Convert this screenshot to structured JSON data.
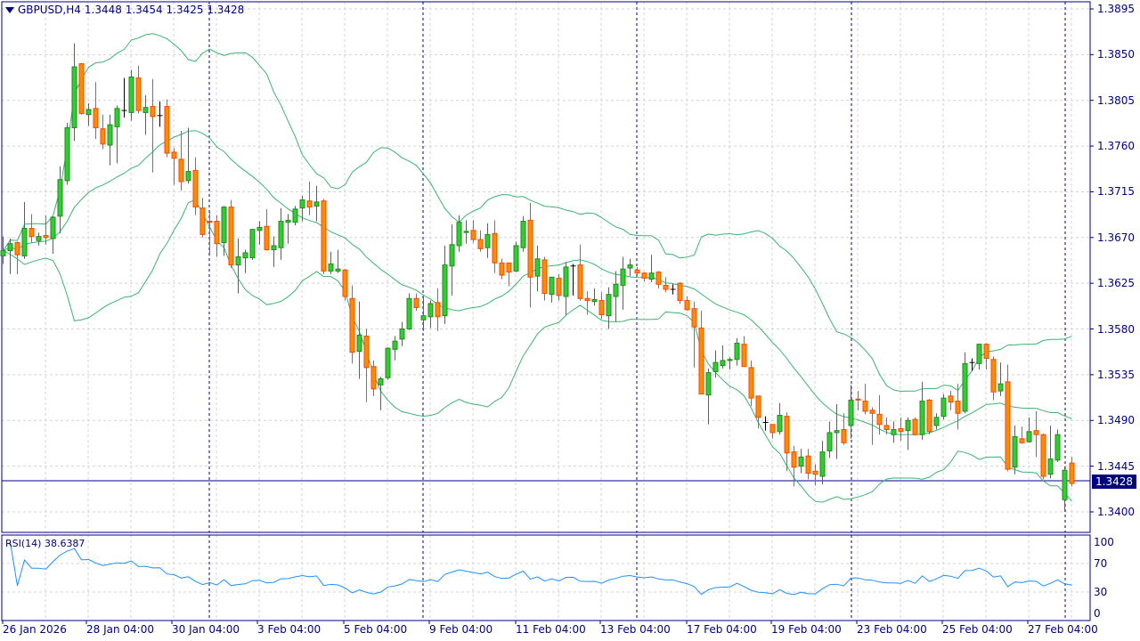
{
  "header": {
    "symbol": "GBPUSD,H4",
    "ohlc": "1.3448 1.3454 1.3425 1.3428",
    "menu_icon": "triangle-down-icon"
  },
  "current_price": "1.3428",
  "rsi_label": "RSI(14) 38.6387",
  "colors": {
    "bull": "#32CD32",
    "bull_border": "#1E8C1E",
    "bear": "#FF8C00",
    "bear_border": "#FF4500",
    "doji": "#000000",
    "bands": "#3CB371",
    "rsi": "#1E90FF",
    "axis": "#000080",
    "grid": "#D3D3D3"
  },
  "chart_data": [
    {
      "type": "candlestick",
      "title": "GBPUSD,H4",
      "indicator": "Bollinger Bands",
      "ylim": [
        1.338,
        1.3905
      ],
      "grid": true,
      "y_ticks": [
        "1.3895",
        "1.3850",
        "1.3805",
        "1.3760",
        "1.3715",
        "1.3670",
        "1.3625",
        "1.3580",
        "1.3535",
        "1.3490",
        "1.3445",
        "1.3400"
      ],
      "x_ticks": [
        "26 Jan 2026",
        "28 Jan 04:00",
        "30 Jan 04:00",
        "3 Feb 04:00",
        "5 Feb 04:00",
        "9 Feb 04:00",
        "11 Feb 04:00",
        "13 Feb 04:00",
        "17 Feb 04:00",
        "19 Feb 04:00",
        "23 Feb 04:00",
        "25 Feb 04:00",
        "27 Feb 04:00"
      ],
      "ohlc": [
        [
          1.3652,
          1.3671,
          1.3644,
          1.3657
        ],
        [
          1.3657,
          1.3669,
          1.3634,
          1.3664
        ],
        [
          1.3665,
          1.3666,
          1.3634,
          1.3653
        ],
        [
          1.3652,
          1.3705,
          1.3649,
          1.3679
        ],
        [
          1.3679,
          1.3693,
          1.3665,
          1.3671
        ],
        [
          1.3667,
          1.3675,
          1.3662,
          1.3671
        ],
        [
          1.3672,
          1.3692,
          1.3663,
          1.367
        ],
        [
          1.3669,
          1.3691,
          1.3654,
          1.369
        ],
        [
          1.3691,
          1.374,
          1.3674,
          1.3727
        ],
        [
          1.3726,
          1.3783,
          1.3722,
          1.3778
        ],
        [
          1.3778,
          1.3861,
          1.3765,
          1.3838
        ],
        [
          1.3841,
          1.3842,
          1.3791,
          1.3792
        ],
        [
          1.3791,
          1.3802,
          1.378,
          1.3796
        ],
        [
          1.3797,
          1.3823,
          1.3767,
          1.3778
        ],
        [
          1.3777,
          1.3791,
          1.3757,
          1.3762
        ],
        [
          1.3761,
          1.3791,
          1.3741,
          1.3781
        ],
        [
          1.3779,
          1.38,
          1.3743,
          1.3797
        ],
        [
          1.3795,
          1.3827,
          1.3788,
          1.3795
        ],
        [
          1.3793,
          1.3835,
          1.3785,
          1.3828
        ],
        [
          1.3827,
          1.3839,
          1.3792,
          1.3795
        ],
        [
          1.3793,
          1.381,
          1.3771,
          1.3798
        ],
        [
          1.3799,
          1.3826,
          1.3734,
          1.3789
        ],
        [
          1.379,
          1.3804,
          1.3779,
          1.379
        ],
        [
          1.3799,
          1.3806,
          1.3749,
          1.3753
        ],
        [
          1.3754,
          1.3758,
          1.3722,
          1.3748
        ],
        [
          1.3747,
          1.3775,
          1.3716,
          1.3725
        ],
        [
          1.3726,
          1.3778,
          1.3723,
          1.3735
        ],
        [
          1.3736,
          1.3749,
          1.3692,
          1.37
        ],
        [
          1.3699,
          1.3709,
          1.367,
          1.3673
        ],
        [
          1.3686,
          1.3697,
          1.3652,
          1.3685
        ],
        [
          1.3686,
          1.3692,
          1.3651,
          1.3664
        ],
        [
          1.3665,
          1.3701,
          1.3652,
          1.37
        ],
        [
          1.37,
          1.3707,
          1.364,
          1.3643
        ],
        [
          1.3643,
          1.3669,
          1.3615,
          1.3651
        ],
        [
          1.365,
          1.3658,
          1.3635,
          1.3655
        ],
        [
          1.365,
          1.3678,
          1.3648,
          1.3678
        ],
        [
          1.3677,
          1.3686,
          1.3663,
          1.368
        ],
        [
          1.3681,
          1.3698,
          1.3657,
          1.3658
        ],
        [
          1.3658,
          1.3671,
          1.3641,
          1.3662
        ],
        [
          1.366,
          1.3699,
          1.3648,
          1.3686
        ],
        [
          1.3685,
          1.3693,
          1.3664,
          1.3687
        ],
        [
          1.3685,
          1.3701,
          1.3682,
          1.3698
        ],
        [
          1.3699,
          1.3711,
          1.3686,
          1.3707
        ],
        [
          1.3706,
          1.3725,
          1.3692,
          1.37
        ],
        [
          1.3701,
          1.3721,
          1.3686,
          1.3705
        ],
        [
          1.3706,
          1.3708,
          1.3634,
          1.3637
        ],
        [
          1.3637,
          1.3656,
          1.3634,
          1.3644
        ],
        [
          1.3637,
          1.3658,
          1.3635,
          1.3639
        ],
        [
          1.3638,
          1.3639,
          1.3608,
          1.3612
        ],
        [
          1.361,
          1.3623,
          1.3546,
          1.3557
        ],
        [
          1.3558,
          1.3607,
          1.3531,
          1.3574
        ],
        [
          1.3573,
          1.358,
          1.3508,
          1.3542
        ],
        [
          1.3543,
          1.3549,
          1.3514,
          1.3521
        ],
        [
          1.3525,
          1.3533,
          1.35,
          1.3531
        ],
        [
          1.3532,
          1.3562,
          1.353,
          1.3561
        ],
        [
          1.356,
          1.3573,
          1.3549,
          1.3568
        ],
        [
          1.357,
          1.3587,
          1.3563,
          1.358
        ],
        [
          1.358,
          1.3615,
          1.3579,
          1.361
        ],
        [
          1.361,
          1.3615,
          1.3598,
          1.3601
        ],
        [
          1.3589,
          1.3612,
          1.3578,
          1.3593
        ],
        [
          1.3592,
          1.3608,
          1.3581,
          1.3605
        ],
        [
          1.3606,
          1.362,
          1.3578,
          1.3592
        ],
        [
          1.3593,
          1.3662,
          1.3585,
          1.3643
        ],
        [
          1.3642,
          1.3683,
          1.3613,
          1.3663
        ],
        [
          1.3662,
          1.3692,
          1.3656,
          1.3685
        ],
        [
          1.3675,
          1.3687,
          1.3664,
          1.3676
        ],
        [
          1.3677,
          1.3687,
          1.3665,
          1.3668
        ],
        [
          1.3668,
          1.3677,
          1.3656,
          1.3659
        ],
        [
          1.366,
          1.3684,
          1.365,
          1.3673
        ],
        [
          1.3674,
          1.3687,
          1.3635,
          1.3645
        ],
        [
          1.3645,
          1.3649,
          1.3629,
          1.3633
        ],
        [
          1.3645,
          1.3645,
          1.3622,
          1.3636
        ],
        [
          1.3637,
          1.3666,
          1.3636,
          1.3662
        ],
        [
          1.366,
          1.3691,
          1.3656,
          1.3686
        ],
        [
          1.3687,
          1.3704,
          1.3601,
          1.3631
        ],
        [
          1.3632,
          1.3662,
          1.3617,
          1.3649
        ],
        [
          1.3648,
          1.3651,
          1.3608,
          1.3615
        ],
        [
          1.3614,
          1.3631,
          1.3606,
          1.3631
        ],
        [
          1.363,
          1.3634,
          1.3608,
          1.3613
        ],
        [
          1.3612,
          1.3646,
          1.3594,
          1.3641
        ],
        [
          1.3642,
          1.3644,
          1.3613,
          1.3642
        ],
        [
          1.3643,
          1.3663,
          1.3608,
          1.361
        ],
        [
          1.361,
          1.3617,
          1.3594,
          1.3608
        ],
        [
          1.3607,
          1.362,
          1.3603,
          1.3609
        ],
        [
          1.3608,
          1.3616,
          1.359,
          1.3594
        ],
        [
          1.3593,
          1.3621,
          1.358,
          1.3614
        ],
        [
          1.3612,
          1.3637,
          1.3587,
          1.3624
        ],
        [
          1.3623,
          1.3651,
          1.3599,
          1.3639
        ],
        [
          1.364,
          1.3649,
          1.3632,
          1.3643
        ],
        [
          1.3638,
          1.3641,
          1.3632,
          1.3635
        ],
        [
          1.3635,
          1.3636,
          1.3627,
          1.363
        ],
        [
          1.3629,
          1.3653,
          1.3626,
          1.3635
        ],
        [
          1.3636,
          1.3637,
          1.362,
          1.3624
        ],
        [
          1.3623,
          1.3631,
          1.3616,
          1.3619
        ],
        [
          1.3619,
          1.3624,
          1.3614,
          1.3619
        ],
        [
          1.3625,
          1.3626,
          1.3605,
          1.3608
        ],
        [
          1.3608,
          1.3612,
          1.3598,
          1.3599
        ],
        [
          1.36,
          1.3607,
          1.3542,
          1.3582
        ],
        [
          1.3581,
          1.3598,
          1.3516,
          1.3516
        ],
        [
          1.3515,
          1.3541,
          1.3486,
          1.3537
        ],
        [
          1.3538,
          1.3559,
          1.3532,
          1.3547
        ],
        [
          1.3544,
          1.3564,
          1.3541,
          1.3549
        ],
        [
          1.3549,
          1.3552,
          1.354,
          1.355
        ],
        [
          1.355,
          1.3571,
          1.3544,
          1.3566
        ],
        [
          1.3565,
          1.3573,
          1.3543,
          1.3543
        ],
        [
          1.3542,
          1.3549,
          1.3504,
          1.3512
        ],
        [
          1.3514,
          1.3514,
          1.3482,
          1.3493
        ],
        [
          1.3488,
          1.3494,
          1.348,
          1.3488
        ],
        [
          1.3486,
          1.3486,
          1.3472,
          1.3478
        ],
        [
          1.3479,
          1.3507,
          1.3476,
          1.3495
        ],
        [
          1.3494,
          1.3498,
          1.344,
          1.3458
        ],
        [
          1.3459,
          1.3465,
          1.3425,
          1.3444
        ],
        [
          1.3445,
          1.3462,
          1.3438,
          1.3454
        ],
        [
          1.3455,
          1.3462,
          1.3432,
          1.3438
        ],
        [
          1.344,
          1.3447,
          1.3426,
          1.3437
        ],
        [
          1.3435,
          1.347,
          1.3427,
          1.3459
        ],
        [
          1.346,
          1.3489,
          1.3453,
          1.3478
        ],
        [
          1.3478,
          1.3506,
          1.3452,
          1.348
        ],
        [
          1.3481,
          1.3497,
          1.3466,
          1.3468
        ],
        [
          1.3485,
          1.3525,
          1.3472,
          1.351
        ],
        [
          1.3511,
          1.3519,
          1.35,
          1.351
        ],
        [
          1.3509,
          1.3526,
          1.3496,
          1.3499
        ],
        [
          1.35,
          1.3503,
          1.3466,
          1.3497
        ],
        [
          1.3496,
          1.3515,
          1.3476,
          1.3486
        ],
        [
          1.3485,
          1.3493,
          1.3476,
          1.3481
        ],
        [
          1.3476,
          1.3489,
          1.3468,
          1.3481
        ],
        [
          1.3482,
          1.3493,
          1.347,
          1.3479
        ],
        [
          1.348,
          1.3493,
          1.3461,
          1.349
        ],
        [
          1.3491,
          1.3493,
          1.3475,
          1.3476
        ],
        [
          1.3476,
          1.3528,
          1.3471,
          1.3509
        ],
        [
          1.351,
          1.3511,
          1.3476,
          1.3479
        ],
        [
          1.3485,
          1.3497,
          1.3481,
          1.3493
        ],
        [
          1.3494,
          1.3516,
          1.3491,
          1.3512
        ],
        [
          1.3514,
          1.3519,
          1.35,
          1.3508
        ],
        [
          1.3509,
          1.3526,
          1.3481,
          1.3497
        ],
        [
          1.3499,
          1.3557,
          1.3497,
          1.3546
        ],
        [
          1.3547,
          1.3551,
          1.3539,
          1.3547
        ],
        [
          1.3546,
          1.3565,
          1.354,
          1.3565
        ],
        [
          1.3565,
          1.3566,
          1.354,
          1.3551
        ],
        [
          1.355,
          1.3553,
          1.351,
          1.3518
        ],
        [
          1.3519,
          1.3547,
          1.3514,
          1.3526
        ],
        [
          1.3528,
          1.3545,
          1.344,
          1.3442
        ],
        [
          1.3444,
          1.3485,
          1.3437,
          1.3474
        ],
        [
          1.3472,
          1.3484,
          1.3467,
          1.3468
        ],
        [
          1.3469,
          1.3493,
          1.3468,
          1.3479
        ],
        [
          1.348,
          1.3499,
          1.3454,
          1.3476
        ],
        [
          1.3476,
          1.3477,
          1.3432,
          1.3435
        ],
        [
          1.3437,
          1.3485,
          1.3433,
          1.3452
        ],
        [
          1.3451,
          1.3481,
          1.3449,
          1.3476
        ],
        [
          1.3412,
          1.3445,
          1.34,
          1.3441
        ],
        [
          1.3448,
          1.3454,
          1.3425,
          1.3428
        ]
      ]
    },
    {
      "type": "line",
      "title": "RSI(14) 38.6387",
      "ylim": [
        0,
        100
      ],
      "y_ticks": [
        "100",
        "70",
        "30",
        "0"
      ],
      "levels": [
        70,
        30
      ],
      "last_value": 38.6387
    }
  ]
}
